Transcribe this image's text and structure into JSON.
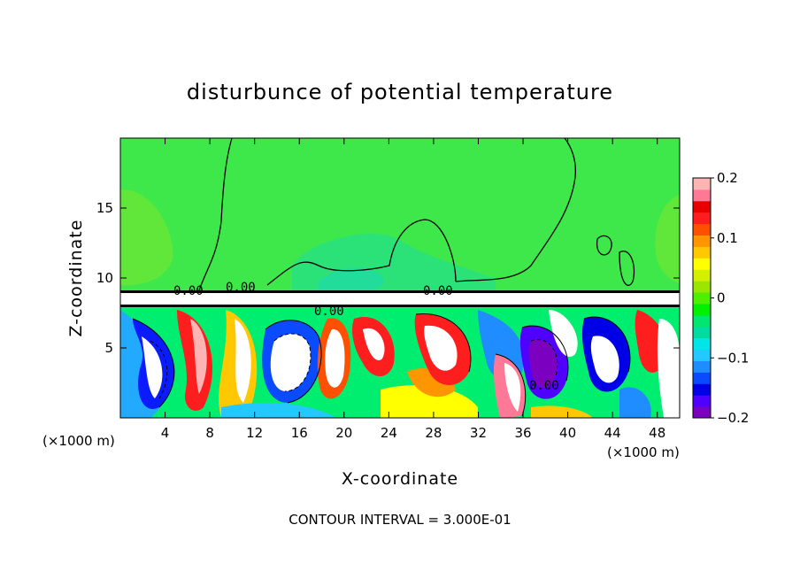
{
  "chart_data": {
    "type": "heatmap",
    "title": "disturbunce of potential temperature",
    "xlabel": "X-coordinate",
    "ylabel": "Z-coordinate",
    "x_unit": "(×1000 m)",
    "y_unit": "(×1000 m)",
    "xlim": [
      0,
      50
    ],
    "ylim": [
      0,
      20
    ],
    "x_ticks": [
      "4",
      "8",
      "12",
      "16",
      "20",
      "24",
      "28",
      "32",
      "36",
      "40",
      "44",
      "48"
    ],
    "y_ticks": [
      "5",
      "10",
      "15"
    ],
    "x_tick_values": [
      4,
      8,
      12,
      16,
      20,
      24,
      28,
      32,
      36,
      40,
      44,
      48
    ],
    "y_tick_values": [
      5,
      10,
      15
    ],
    "colorbar": {
      "range": [
        -0.2,
        0.2
      ],
      "labels": [
        "0.2",
        "0.1",
        "0",
        "−0.1",
        "−0.2"
      ],
      "label_values": [
        0.2,
        0.1,
        0,
        -0.1,
        -0.2
      ],
      "colors": [
        "#7b00c0",
        "#5000ff",
        "#0000e6",
        "#0a4bff",
        "#1f8cff",
        "#22c8ff",
        "#00e6e6",
        "#00dca0",
        "#00e66e",
        "#00f000",
        "#4cf000",
        "#9be600",
        "#d2f000",
        "#ffff00",
        "#ffc800",
        "#ff9600",
        "#ff5000",
        "#ff1e1e",
        "#e60000",
        "#ff7896",
        "#ffb4b4"
      ]
    },
    "contour_labels": [
      "0.00",
      "0.00",
      "0.00",
      "0.00",
      "0.00"
    ],
    "contour_interval_text": "CONTOUR INTERVAL = 3.000E-01",
    "colors": {
      "upper_background": "#3ee84a",
      "lower_background": "#ffffff",
      "contour": "#000000"
    }
  }
}
